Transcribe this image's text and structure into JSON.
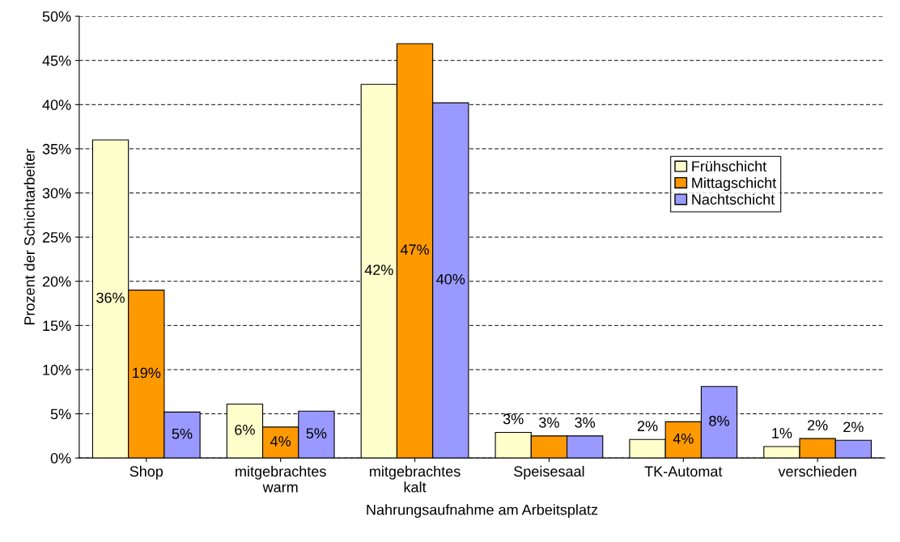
{
  "chart_data": {
    "type": "bar",
    "xlabel": "Nahrungsaufnahme am Arbeitsplatz",
    "ylabel": "Prozent der Schichtarbeiter",
    "categories": [
      "Shop",
      "mitgebrachtes\nwarm",
      "mitgebrachtes\nkalt",
      "Speisesaal",
      "TK-Automat",
      "verschieden"
    ],
    "series": [
      {
        "name": "Frühschicht",
        "color": "#ffffcc",
        "values": [
          36.0,
          6.1,
          42.3,
          2.9,
          2.1,
          1.3
        ],
        "value_labels": [
          "36%",
          "6%",
          "42%",
          "3%",
          "2%",
          "1%"
        ]
      },
      {
        "name": "Mittagschicht",
        "color": "#ff9900",
        "values": [
          19.0,
          3.5,
          46.9,
          2.5,
          4.1,
          2.2
        ],
        "value_labels": [
          "19%",
          "4%",
          "47%",
          "3%",
          "4%",
          "2%"
        ]
      },
      {
        "name": "Nachtschicht",
        "color": "#9999ff",
        "values": [
          5.2,
          5.3,
          40.2,
          2.5,
          8.1,
          2.0
        ],
        "value_labels": [
          "5%",
          "5%",
          "40%",
          "3%",
          "8%",
          "2%"
        ]
      }
    ],
    "ylim": [
      0,
      50
    ],
    "yticks": [
      {
        "value": 0,
        "label": "0%"
      },
      {
        "value": 5,
        "label": "5%"
      },
      {
        "value": 10,
        "label": "10%"
      },
      {
        "value": 15,
        "label": "15%"
      },
      {
        "value": 20,
        "label": "20%"
      },
      {
        "value": 25,
        "label": "25%"
      },
      {
        "value": 30,
        "label": "30%"
      },
      {
        "value": 35,
        "label": "35%"
      },
      {
        "value": 40,
        "label": "40%"
      },
      {
        "value": 45,
        "label": "45%"
      },
      {
        "value": 50,
        "label": "50%"
      }
    ],
    "grid": "y",
    "legend": "right"
  }
}
